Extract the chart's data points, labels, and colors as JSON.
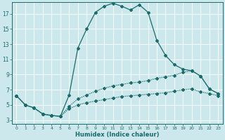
{
  "xlabel": "Humidex (Indice chaleur)",
  "xlim": [
    -0.5,
    23.5
  ],
  "ylim": [
    2.5,
    18.5
  ],
  "yticks": [
    3,
    5,
    7,
    9,
    11,
    13,
    15,
    17
  ],
  "xticks": [
    0,
    1,
    2,
    3,
    4,
    5,
    6,
    7,
    8,
    9,
    10,
    11,
    12,
    13,
    14,
    15,
    16,
    17,
    18,
    19,
    20,
    21,
    22,
    23
  ],
  "bg_color": "#cce8ec",
  "line_color": "#1a6b6b",
  "grid_color": "#ffffff",
  "line1_x": [
    0,
    1,
    2,
    3,
    4,
    5,
    6,
    7,
    8,
    9,
    10,
    11,
    12,
    13,
    14,
    15,
    16,
    17,
    18,
    19,
    20,
    21,
    22,
    23
  ],
  "line1_y": [
    6.2,
    5.0,
    4.6,
    3.8,
    3.6,
    3.5,
    6.3,
    12.5,
    15.0,
    17.2,
    18.0,
    18.4,
    18.0,
    17.5,
    18.2,
    17.2,
    13.5,
    11.5,
    10.3,
    9.7,
    9.5,
    8.8,
    7.1,
    6.5
  ],
  "line2_x": [
    0,
    1,
    2,
    3,
    4,
    5,
    6,
    7,
    8,
    9,
    10,
    11,
    12,
    13,
    14,
    15,
    16,
    17,
    18,
    19,
    20,
    21,
    22,
    23
  ],
  "line2_y": [
    6.2,
    5.0,
    4.6,
    3.8,
    3.6,
    3.5,
    4.8,
    5.8,
    6.3,
    6.8,
    7.2,
    7.5,
    7.7,
    7.9,
    8.0,
    8.2,
    8.5,
    8.7,
    8.9,
    9.3,
    9.5,
    8.8,
    7.1,
    6.5
  ],
  "line3_x": [
    0,
    1,
    2,
    3,
    4,
    5,
    6,
    7,
    8,
    9,
    10,
    11,
    12,
    13,
    14,
    15,
    16,
    17,
    18,
    19,
    20,
    21,
    22,
    23
  ],
  "line3_y": [
    6.2,
    5.0,
    4.6,
    3.8,
    3.6,
    3.5,
    4.5,
    5.0,
    5.3,
    5.5,
    5.7,
    5.9,
    6.1,
    6.2,
    6.3,
    6.4,
    6.5,
    6.6,
    6.8,
    7.0,
    7.1,
    6.7,
    6.5,
    6.2
  ]
}
